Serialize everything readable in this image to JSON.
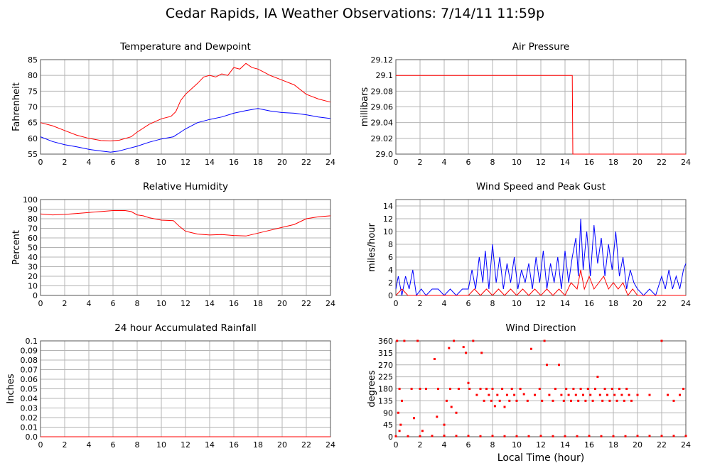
{
  "page": {
    "title": "Cedar Rapids, IA Weather Observations: 7/14/11 11:59p",
    "xaxis_label": "Local Time (hour)"
  },
  "colors": {
    "red": "#ff0000",
    "blue": "#0000ff",
    "grid": "#b4b4b4",
    "frame": "#555555"
  },
  "chart_data": [
    {
      "id": "temp",
      "type": "line",
      "title": "Temperature and Dewpoint",
      "xlabel": "",
      "ylabel": "Fahrenheit",
      "xlim": [
        0,
        24
      ],
      "ylim": [
        55,
        85
      ],
      "xticks": [
        0,
        2,
        4,
        6,
        8,
        10,
        12,
        14,
        16,
        18,
        20,
        22,
        24
      ],
      "yticks": [
        "55",
        "60",
        "65",
        "70",
        "75",
        "80",
        "85"
      ],
      "grid": true,
      "series": [
        {
          "color": "#ff0000",
          "x": [
            0,
            1,
            2,
            3,
            4,
            5,
            5.8,
            6.5,
            7.5,
            8,
            9,
            10,
            10.8,
            11.2,
            11.6,
            12,
            13,
            13.5,
            14,
            14.5,
            15,
            15.5,
            16,
            16.5,
            17,
            17.5,
            18,
            18.5,
            19,
            20,
            21,
            22,
            23,
            24
          ],
          "y": [
            65,
            64,
            62.5,
            61,
            60,
            59.3,
            59.2,
            59.4,
            60.5,
            62,
            64.5,
            66.2,
            67,
            68.5,
            72,
            74,
            77.5,
            79.5,
            80,
            79.5,
            80.5,
            80,
            82.5,
            82,
            83.8,
            82.5,
            82,
            81,
            80,
            78.5,
            77,
            74,
            72.5,
            71.5
          ]
        },
        {
          "color": "#0000ff",
          "x": [
            0,
            1,
            2,
            3,
            4,
            5,
            5.8,
            6.5,
            7,
            8,
            9,
            10,
            11,
            12,
            13,
            14,
            15,
            16,
            17,
            18,
            19,
            20,
            21,
            22,
            23,
            24
          ],
          "y": [
            60.5,
            59,
            58,
            57.3,
            56.5,
            56,
            55.6,
            56,
            56.5,
            57.5,
            58.8,
            59.8,
            60.5,
            63,
            65,
            66,
            66.8,
            68,
            68.8,
            69.5,
            68.7,
            68.2,
            68,
            67.5,
            66.8,
            66.3
          ]
        }
      ]
    },
    {
      "id": "pressure",
      "type": "line",
      "title": "Air Pressure",
      "xlabel": "",
      "ylabel": "millibars",
      "xlim": [
        0,
        24
      ],
      "ylim": [
        29.0,
        29.12
      ],
      "xticks": [
        0,
        2,
        4,
        6,
        8,
        10,
        12,
        14,
        16,
        18,
        20,
        22,
        24
      ],
      "yticks": [
        "29.0",
        "29.02",
        "29.04",
        "29.06",
        "29.08",
        "29.1",
        "29.12"
      ],
      "grid": true,
      "series": [
        {
          "color": "#ff0000",
          "x": [
            0,
            14.6,
            14.65,
            24
          ],
          "y": [
            29.1,
            29.1,
            29.0,
            29.0
          ]
        }
      ]
    },
    {
      "id": "humidity",
      "type": "line",
      "title": "Relative Humidity",
      "xlabel": "",
      "ylabel": "Percent",
      "xlim": [
        0,
        24
      ],
      "ylim": [
        0,
        100
      ],
      "xticks": [
        0,
        2,
        4,
        6,
        8,
        10,
        12,
        14,
        16,
        18,
        20,
        22,
        24
      ],
      "yticks": [
        "0",
        "10",
        "20",
        "30",
        "40",
        "50",
        "60",
        "70",
        "80",
        "90",
        "100"
      ],
      "grid": true,
      "series": [
        {
          "color": "#ff0000",
          "x": [
            0,
            1,
            2,
            3,
            4,
            5,
            6,
            7,
            7.5,
            8,
            8.5,
            9,
            10,
            11,
            11.5,
            12,
            12.5,
            13,
            14,
            15,
            16,
            17,
            18,
            19,
            20,
            21,
            22,
            23,
            24
          ],
          "y": [
            85,
            84,
            84.5,
            85.5,
            86.5,
            87.5,
            88.5,
            88.5,
            87.5,
            84,
            83,
            81,
            78.5,
            78,
            72,
            67,
            65.5,
            64,
            63,
            63.5,
            62.5,
            62,
            65,
            68,
            71,
            74,
            80,
            82,
            83
          ]
        }
      ]
    },
    {
      "id": "wind_speed",
      "type": "line",
      "title": "Wind Speed and Peak Gust",
      "xlabel": "",
      "ylabel": "miles/hour",
      "xlim": [
        0,
        24
      ],
      "ylim": [
        0,
        15
      ],
      "xticks": [
        0,
        2,
        4,
        6,
        8,
        10,
        12,
        14,
        16,
        18,
        20,
        22,
        24
      ],
      "yticks": [
        "0",
        "2",
        "4",
        "6",
        "8",
        "10",
        "12",
        "14"
      ],
      "grid": true,
      "series": [
        {
          "color": "#0000ff",
          "x": [
            0,
            0.2,
            0.5,
            0.8,
            1.1,
            1.4,
            1.7,
            2.1,
            2.5,
            3,
            3.5,
            4,
            4.5,
            5,
            5.5,
            6,
            6.3,
            6.6,
            6.9,
            7.2,
            7.4,
            7.7,
            8,
            8.3,
            8.6,
            8.9,
            9.2,
            9.5,
            9.8,
            10.1,
            10.4,
            10.7,
            11,
            11.3,
            11.6,
            11.9,
            12.2,
            12.5,
            12.8,
            13.1,
            13.4,
            13.7,
            14,
            14.3,
            14.6,
            14.9,
            15.1,
            15.3,
            15.5,
            15.8,
            16.1,
            16.4,
            16.7,
            17,
            17.3,
            17.6,
            17.9,
            18.2,
            18.5,
            18.8,
            19.1,
            19.4,
            19.7,
            20,
            20.5,
            21,
            21.5,
            22,
            22.3,
            22.6,
            22.9,
            23.2,
            23.5,
            23.8,
            24
          ],
          "y": [
            1,
            3,
            0,
            3,
            1,
            4,
            0,
            1,
            0,
            1,
            1,
            0,
            1,
            0,
            1,
            1,
            4,
            1,
            6,
            2,
            7,
            1,
            8,
            2,
            6,
            1,
            5,
            2,
            6,
            1,
            4,
            2,
            5,
            1,
            6,
            2,
            7,
            1,
            5,
            2,
            6,
            1,
            7,
            2,
            6,
            9,
            3,
            12,
            4,
            10,
            3,
            11,
            5,
            9,
            3,
            8,
            4,
            10,
            3,
            6,
            1,
            4,
            2,
            1,
            0,
            1,
            0,
            3,
            1,
            4,
            1,
            3,
            1,
            4,
            5
          ]
        },
        {
          "color": "#ff0000",
          "x": [
            0,
            0.5,
            1,
            2,
            3,
            4,
            5,
            6,
            6.5,
            7,
            7.5,
            8,
            8.5,
            9,
            9.5,
            10,
            10.5,
            11,
            11.5,
            12,
            12.5,
            13,
            13.5,
            14,
            14.5,
            15,
            15.3,
            15.6,
            16,
            16.4,
            16.8,
            17.2,
            17.6,
            18,
            18.4,
            18.8,
            19.2,
            19.6,
            20,
            21,
            22,
            23,
            24
          ],
          "y": [
            0,
            1,
            0,
            0,
            0,
            0,
            0,
            0,
            1,
            0,
            1,
            0,
            1,
            0,
            1,
            0,
            1,
            0,
            1,
            0,
            1,
            0,
            1,
            0,
            2,
            1,
            4,
            1,
            3,
            1,
            2,
            3,
            1,
            2,
            1,
            2,
            0,
            1,
            0,
            0,
            0,
            0,
            0
          ]
        }
      ]
    },
    {
      "id": "rainfall",
      "type": "line",
      "title": "24 hour Accumulated Rainfall",
      "xlabel": "",
      "ylabel": "Inches",
      "xlim": [
        0,
        24
      ],
      "ylim": [
        0,
        0.1
      ],
      "xticks": [
        0,
        2,
        4,
        6,
        8,
        10,
        12,
        14,
        16,
        18,
        20,
        22,
        24
      ],
      "yticks": [
        "0.0",
        "0.01",
        "0.02",
        "0.03",
        "0.04",
        "0.05",
        "0.06",
        "0.07",
        "0.08",
        "0.09",
        "0.1"
      ],
      "grid": true,
      "series": [
        {
          "color": "#ff0000",
          "x": [
            0,
            24
          ],
          "y": [
            0,
            0
          ]
        }
      ]
    },
    {
      "id": "wind_dir",
      "type": "scatter",
      "title": "Wind Direction",
      "xlabel": "Local Time (hour)",
      "ylabel": "degrees",
      "xlim": [
        0,
        24
      ],
      "ylim": [
        0,
        360
      ],
      "xticks": [
        0,
        2,
        4,
        6,
        8,
        10,
        12,
        14,
        16,
        18,
        20,
        22,
        24
      ],
      "yticks": [
        "0",
        "45",
        "90",
        "135",
        "180",
        "225",
        "270",
        "315",
        "360"
      ],
      "grid": true,
      "series": [
        {
          "color": "#ff0000",
          "x": [
            0.1,
            0.2,
            0.3,
            0.3,
            0.4,
            0.5,
            0.7,
            1.3,
            1.5,
            1.8,
            2,
            2.2,
            2.5,
            3.2,
            3.4,
            3.5,
            4,
            4.2,
            4.4,
            4.5,
            4.6,
            4.8,
            5,
            5.2,
            5.6,
            5.8,
            6,
            6.1,
            6.4,
            6.7,
            7,
            7.1,
            7.3,
            7.5,
            7.7,
            7.9,
            8,
            8.2,
            8.4,
            8.6,
            8.8,
            9,
            9.2,
            9.4,
            9.6,
            9.8,
            10,
            10.3,
            10.6,
            10.9,
            11.2,
            11.5,
            11.9,
            12.1,
            12.3,
            12.5,
            12.7,
            13,
            13.2,
            13.5,
            13.7,
            13.9,
            14.1,
            14.3,
            14.5,
            14.7,
            14.9,
            15.1,
            15.3,
            15.5,
            15.7,
            15.9,
            16.1,
            16.3,
            16.5,
            16.7,
            16.9,
            17.1,
            17.3,
            17.5,
            17.7,
            17.9,
            18.1,
            18.3,
            18.5,
            18.7,
            18.9,
            19.1,
            19.3,
            19.5,
            20,
            21,
            22,
            22.5,
            23,
            23.5,
            23.8
          ],
          "y": [
            360,
            90,
            180,
            22,
            45,
            135,
            360,
            180,
            70,
            360,
            180,
            22,
            180,
            292,
            75,
            180,
            45,
            135,
            333,
            180,
            112,
            360,
            90,
            180,
            337,
            315,
            202,
            180,
            360,
            157,
            180,
            315,
            135,
            180,
            157,
            135,
            180,
            115,
            157,
            135,
            180,
            112,
            157,
            135,
            180,
            157,
            135,
            180,
            160,
            135,
            330,
            157,
            180,
            135,
            360,
            270,
            157,
            135,
            180,
            270,
            157,
            135,
            180,
            157,
            135,
            180,
            157,
            135,
            180,
            157,
            135,
            180,
            157,
            135,
            180,
            225,
            157,
            135,
            180,
            157,
            135,
            180,
            157,
            135,
            180,
            157,
            135,
            180,
            157,
            135,
            157,
            157,
            360,
            157,
            135,
            157,
            180
          ]
        },
        {
          "color": "#ff0000",
          "x": [
            0,
            1,
            2,
            3,
            4,
            5,
            6,
            7,
            8,
            9,
            10,
            11,
            12,
            13,
            14,
            15,
            16,
            17,
            18,
            19,
            20,
            21,
            22,
            23,
            24
          ],
          "y": [
            2,
            2,
            2,
            3,
            4,
            3,
            3,
            2,
            3,
            2,
            2,
            2,
            3,
            2,
            2,
            2,
            3,
            2,
            2,
            2,
            3,
            3,
            3,
            3,
            3
          ]
        }
      ]
    }
  ]
}
